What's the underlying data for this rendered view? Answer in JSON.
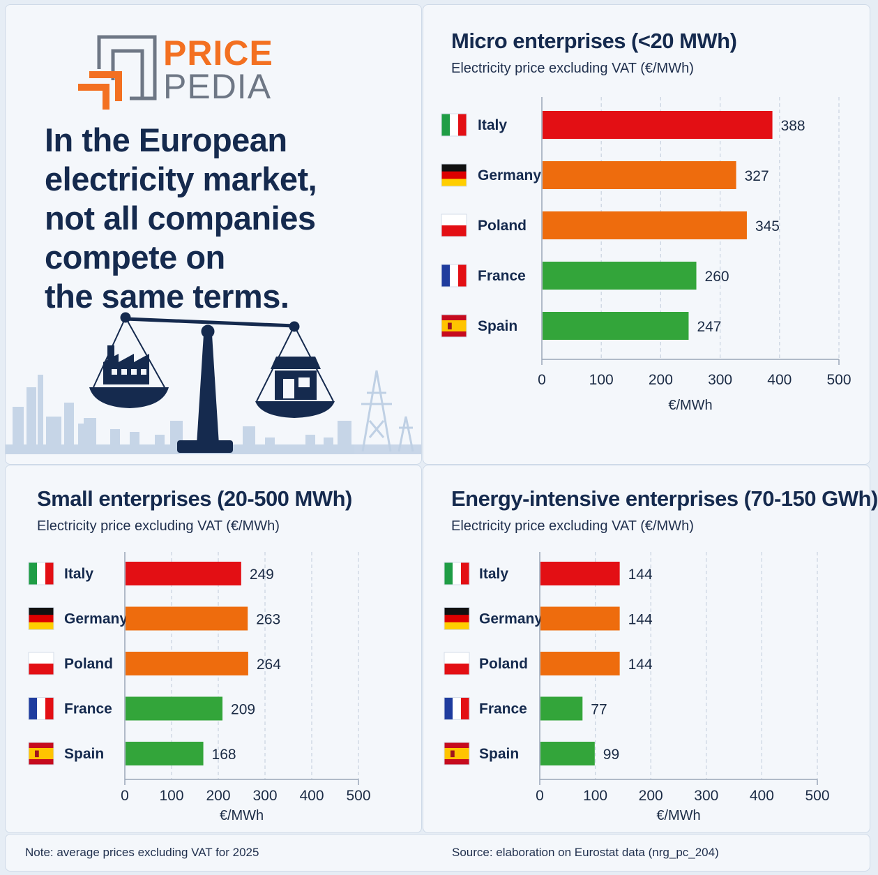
{
  "logo": {
    "line1": "PRICE",
    "line2": "PEDIA"
  },
  "headline": {
    "lines": [
      "In the European",
      "electricity market,",
      "not all companies",
      "compete on",
      "the same terms."
    ]
  },
  "colors": {
    "red": "#e30f14",
    "orange": "#ee6c0d",
    "green": "#33a53a",
    "navy": "#152a4e",
    "logo_orange": "#f37021"
  },
  "footer": {
    "note": "Note: average prices excluding VAT for 2025",
    "source": "Source: elaboration on Eurostat data (nrg_pc_204)"
  },
  "chart_data": [
    {
      "type": "bar",
      "orientation": "horizontal",
      "title": "Micro enterprises (<20 MWh)",
      "subtitle": "Electricity price excluding VAT (€/MWh)",
      "categories": [
        "Italy",
        "Germany",
        "Poland",
        "France",
        "Spain"
      ],
      "values": [
        388,
        327,
        345,
        260,
        247
      ],
      "bar_colors": [
        "#e30f14",
        "#ee6c0d",
        "#ee6c0d",
        "#33a53a",
        "#33a53a"
      ],
      "xlabel": "€/MWh",
      "xlim": [
        0,
        500
      ],
      "xticks": [
        0,
        100,
        200,
        300,
        400,
        500
      ],
      "grid": true
    },
    {
      "type": "bar",
      "orientation": "horizontal",
      "title": "Small enterprises (20-500 MWh)",
      "subtitle": "Electricity price excluding VAT (€/MWh)",
      "categories": [
        "Italy",
        "Germany",
        "Poland",
        "France",
        "Spain"
      ],
      "values": [
        249,
        263,
        264,
        209,
        168
      ],
      "bar_colors": [
        "#e30f14",
        "#ee6c0d",
        "#ee6c0d",
        "#33a53a",
        "#33a53a"
      ],
      "xlabel": "€/MWh",
      "xlim": [
        0,
        500
      ],
      "xticks": [
        0,
        100,
        200,
        300,
        400,
        500
      ],
      "grid": true
    },
    {
      "type": "bar",
      "orientation": "horizontal",
      "title": "Energy-intensive enterprises (70-150 GWh)",
      "subtitle": "Electricity price excluding VAT (€/MWh)",
      "categories": [
        "Italy",
        "Germany",
        "Poland",
        "France",
        "Spain"
      ],
      "values": [
        144,
        144,
        144,
        77,
        99
      ],
      "bar_colors": [
        "#e30f14",
        "#ee6c0d",
        "#ee6c0d",
        "#33a53a",
        "#33a53a"
      ],
      "xlabel": "€/MWh",
      "xlim": [
        0,
        500
      ],
      "xticks": [
        0,
        100,
        200,
        300,
        400,
        500
      ],
      "grid": true
    }
  ]
}
